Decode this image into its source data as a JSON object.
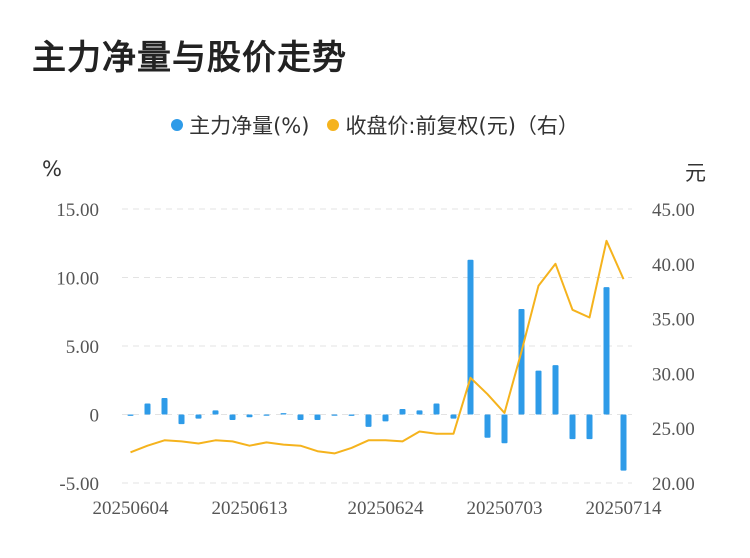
{
  "title": "主力净量与股价走势",
  "legend": {
    "series1": "主力净量(%)",
    "series2": "收盘价:前复权(元)（右）"
  },
  "units": {
    "left": "%",
    "right": "元"
  },
  "colors": {
    "bar": "#2e9be8",
    "line": "#f5b31d",
    "grid": "#e3e3e3"
  },
  "chart_data": {
    "type": "bar",
    "x_labels": [
      "20250604",
      "20250613",
      "20250624",
      "20250703",
      "20250714"
    ],
    "y_left": {
      "ticks": [
        "15.00",
        "10.00",
        "5.00",
        "0",
        "-5.00"
      ],
      "lim": [
        -5,
        15
      ]
    },
    "y_right": {
      "ticks": [
        "45.00",
        "40.00",
        "35.00",
        "30.00",
        "25.00",
        "20.00"
      ],
      "lim": [
        20,
        45
      ]
    },
    "series": [
      {
        "name": "主力净量(%)",
        "type": "bar",
        "values": [
          -0.1,
          0.8,
          1.2,
          -0.7,
          -0.3,
          0.3,
          -0.4,
          -0.2,
          0.0,
          0.1,
          -0.4,
          -0.4,
          0.0,
          -0.1,
          -0.9,
          -0.5,
          0.4,
          0.3,
          0.8,
          -0.3,
          11.3,
          -1.7,
          -2.1,
          7.7,
          3.2,
          3.6,
          -1.8,
          -1.8,
          9.3,
          -4.1
        ]
      },
      {
        "name": "收盘价:前复权(元)（右）",
        "type": "line",
        "values": [
          22.8,
          23.4,
          23.9,
          23.8,
          23.6,
          23.9,
          23.8,
          23.4,
          23.7,
          23.5,
          23.4,
          22.9,
          22.7,
          23.2,
          23.9,
          23.9,
          23.8,
          24.7,
          24.5,
          24.5,
          29.6,
          28.1,
          26.4,
          32.0,
          38.0,
          40.0,
          35.8,
          35.1,
          42.1,
          38.6
        ]
      }
    ]
  }
}
